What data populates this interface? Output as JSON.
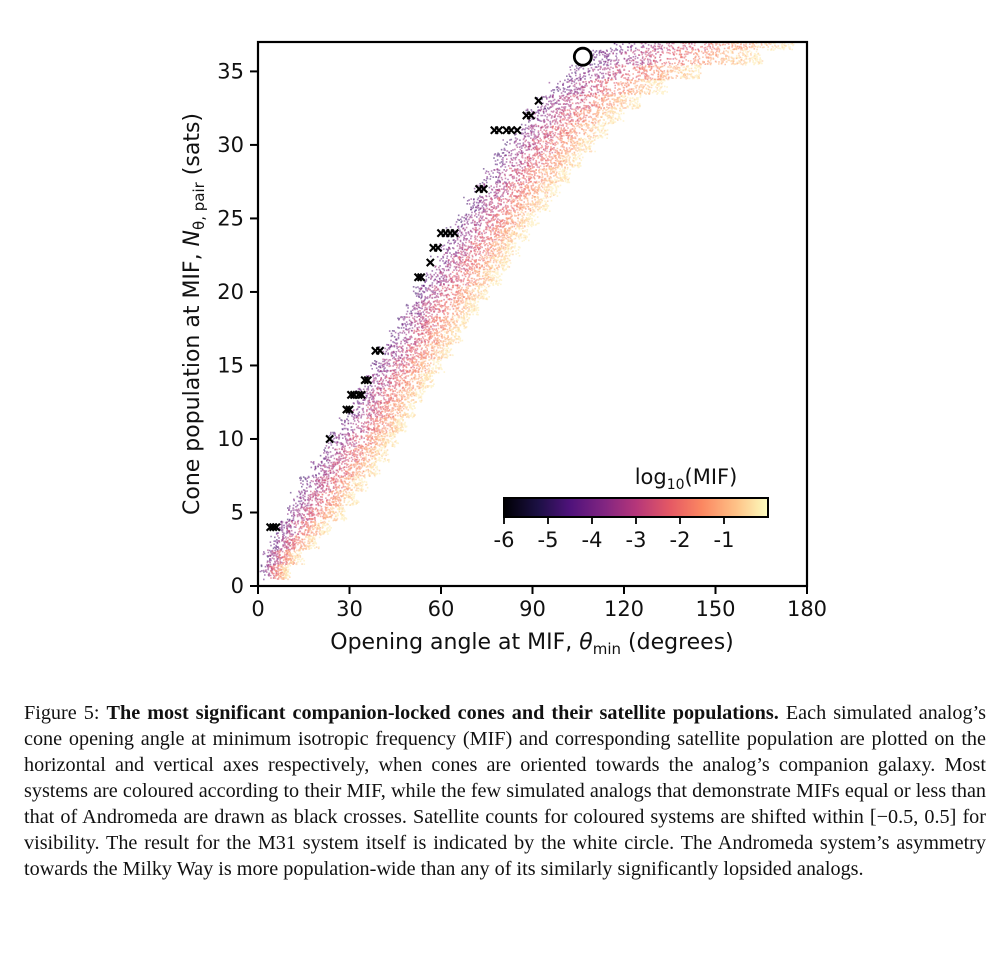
{
  "chart_data": {
    "type": "scatter",
    "x_axis": {
      "label_prefix": "Opening angle at MIF, ",
      "label_symbol": "θ",
      "label_subscript": "min",
      "label_suffix": " (degrees)",
      "range": [
        0,
        180
      ],
      "ticks": [
        0,
        30,
        60,
        90,
        120,
        150,
        180
      ],
      "tick_labels": [
        "0",
        "30",
        "60",
        "90",
        "120",
        "150",
        "180"
      ]
    },
    "y_axis": {
      "label_prefix": "Cone population at MIF, ",
      "label_symbol": "N",
      "label_subscript": "θ, pair",
      "label_suffix": " (sats)",
      "range": [
        0,
        37
      ],
      "ticks": [
        0,
        5,
        10,
        15,
        20,
        25,
        30,
        35
      ],
      "tick_labels": [
        "0",
        "5",
        "10",
        "15",
        "20",
        "25",
        "30",
        "35"
      ]
    },
    "colorbar": {
      "title_prefix": "log",
      "title_subscript": "10",
      "title_suffix": "(MIF)",
      "range": [
        -6,
        0
      ],
      "ticks": [
        -6,
        -5,
        -4,
        -3,
        -2,
        -1
      ],
      "tick_labels": [
        "-6",
        "-5",
        "-4",
        "-3",
        "-2",
        "-1"
      ],
      "colormap": "magma",
      "location": "lower-right"
    },
    "band_model": {
      "description": "coloured analog systems; per satellite count N, opening angles spread between left and right edges",
      "rows": [
        {
          "n": 1,
          "left": 1,
          "right": 10
        },
        {
          "n": 2,
          "left": 2,
          "right": 14
        },
        {
          "n": 3,
          "left": 4,
          "right": 19
        },
        {
          "n": 4,
          "left": 6,
          "right": 23
        },
        {
          "n": 5,
          "left": 9,
          "right": 28
        },
        {
          "n": 6,
          "left": 11,
          "right": 32
        },
        {
          "n": 7,
          "left": 14,
          "right": 35
        },
        {
          "n": 8,
          "left": 17,
          "right": 39
        },
        {
          "n": 9,
          "left": 20,
          "right": 42
        },
        {
          "n": 10,
          "left": 23,
          "right": 45
        },
        {
          "n": 11,
          "left": 27,
          "right": 48
        },
        {
          "n": 12,
          "left": 29,
          "right": 51
        },
        {
          "n": 13,
          "left": 31,
          "right": 54
        },
        {
          "n": 14,
          "left": 34,
          "right": 57
        },
        {
          "n": 15,
          "left": 37,
          "right": 60
        },
        {
          "n": 16,
          "left": 40,
          "right": 63
        },
        {
          "n": 17,
          "left": 43,
          "right": 66
        },
        {
          "n": 18,
          "left": 45,
          "right": 69
        },
        {
          "n": 19,
          "left": 48,
          "right": 72
        },
        {
          "n": 20,
          "left": 51,
          "right": 75
        },
        {
          "n": 21,
          "left": 54,
          "right": 79
        },
        {
          "n": 22,
          "left": 56,
          "right": 82
        },
        {
          "n": 23,
          "left": 59,
          "right": 85
        },
        {
          "n": 24,
          "left": 62,
          "right": 88
        },
        {
          "n": 25,
          "left": 65,
          "right": 91
        },
        {
          "n": 26,
          "left": 68,
          "right": 95
        },
        {
          "n": 27,
          "left": 71,
          "right": 98
        },
        {
          "n": 28,
          "left": 74,
          "right": 102
        },
        {
          "n": 29,
          "left": 77,
          "right": 106
        },
        {
          "n": 30,
          "left": 80,
          "right": 110
        },
        {
          "n": 31,
          "left": 83,
          "right": 114
        },
        {
          "n": 32,
          "left": 87,
          "right": 119
        },
        {
          "n": 33,
          "left": 91,
          "right": 125
        },
        {
          "n": 34,
          "left": 96,
          "right": 133
        },
        {
          "n": 35,
          "left": 101,
          "right": 145
        },
        {
          "n": 36,
          "left": 107,
          "right": 165
        },
        {
          "n": 37,
          "left": 115,
          "right": 175
        }
      ]
    },
    "black_crosses": [
      {
        "x": 4,
        "y": 4
      },
      {
        "x": 5,
        "y": 4
      },
      {
        "x": 6,
        "y": 4
      },
      {
        "x": 23.5,
        "y": 10
      },
      {
        "x": 29,
        "y": 12
      },
      {
        "x": 30,
        "y": 12
      },
      {
        "x": 30.5,
        "y": 13
      },
      {
        "x": 31.5,
        "y": 13
      },
      {
        "x": 33,
        "y": 13
      },
      {
        "x": 34,
        "y": 13
      },
      {
        "x": 35,
        "y": 14
      },
      {
        "x": 36,
        "y": 14
      },
      {
        "x": 38.5,
        "y": 16
      },
      {
        "x": 40,
        "y": 16
      },
      {
        "x": 52.5,
        "y": 21
      },
      {
        "x": 53.5,
        "y": 21
      },
      {
        "x": 56.5,
        "y": 22
      },
      {
        "x": 57.5,
        "y": 23
      },
      {
        "x": 59,
        "y": 23
      },
      {
        "x": 60,
        "y": 24
      },
      {
        "x": 61.5,
        "y": 24
      },
      {
        "x": 63,
        "y": 24
      },
      {
        "x": 64.5,
        "y": 24
      },
      {
        "x": 72.5,
        "y": 27
      },
      {
        "x": 74,
        "y": 27
      },
      {
        "x": 77.5,
        "y": 31
      },
      {
        "x": 79,
        "y": 31
      },
      {
        "x": 81.5,
        "y": 31
      },
      {
        "x": 83,
        "y": 31
      },
      {
        "x": 85,
        "y": 31
      },
      {
        "x": 88,
        "y": 32
      },
      {
        "x": 89.5,
        "y": 32
      },
      {
        "x": 92,
        "y": 33
      }
    ],
    "m31": {
      "x": 106.5,
      "y": 36
    }
  },
  "caption": {
    "figure_number": "Figure 5:",
    "title": "The most significant companion-locked cones and their satellite populations.",
    "body_1": "Each simulated analog’s cone opening angle at minimum isotropic frequency (MIF) and corresponding satellite population are plotted on the horizontal and vertical axes respectively, when cones are oriented towards the analog’s companion galaxy. Most systems are coloured according to their MIF, while the few simulated analogs that demonstrate MIFs equal or less than that of Andromeda are drawn as black crosses. Satellite counts for coloured systems are shifted within ",
    "math_interval": "[−0.5, 0.5]",
    "body_2": " for visibility. The result for the M31 system itself is indicated by the white circle. The Andromeda system’s asymmetry towards the Milky Way is more population-wide than any of its similarly significantly lopsided analogs."
  }
}
